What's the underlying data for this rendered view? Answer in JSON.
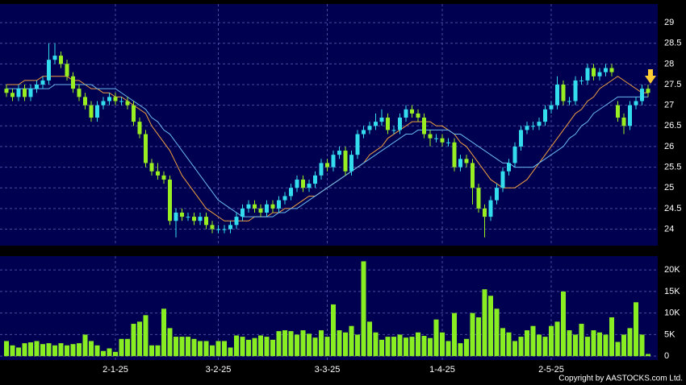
{
  "chart_data": {
    "type": "candlestick",
    "categories": [
      null,
      null,
      null,
      null,
      null,
      null,
      null,
      null,
      null,
      null,
      null,
      null,
      null,
      null,
      null,
      null,
      null,
      null,
      "2-1-25",
      null,
      null,
      null,
      null,
      null,
      null,
      null,
      null,
      null,
      null,
      null,
      null,
      null,
      null,
      null,
      null,
      "3-2-25",
      null,
      null,
      null,
      null,
      null,
      null,
      null,
      null,
      null,
      null,
      null,
      null,
      null,
      null,
      null,
      null,
      null,
      "3-3-25",
      null,
      null,
      null,
      null,
      null,
      null,
      null,
      null,
      null,
      null,
      null,
      null,
      null,
      null,
      null,
      null,
      null,
      null,
      "1-4-25",
      null,
      null,
      null,
      null,
      null,
      null,
      null,
      null,
      null,
      null,
      null,
      null,
      null,
      null,
      null,
      null,
      null,
      "2-5-25",
      null,
      null,
      null,
      null,
      null,
      null,
      null,
      null,
      null,
      null,
      null,
      null,
      null,
      null,
      null,
      null
    ],
    "ohlc": [
      [
        27.4,
        27.5,
        27.2,
        27.3
      ],
      [
        27.3,
        27.4,
        27.1,
        27.2
      ],
      [
        27.2,
        27.5,
        27.1,
        27.4
      ],
      [
        27.4,
        27.5,
        27.1,
        27.2
      ],
      [
        27.2,
        27.5,
        27.1,
        27.4
      ],
      [
        27.4,
        27.6,
        27.3,
        27.5
      ],
      [
        27.5,
        27.7,
        27.4,
        27.6
      ],
      [
        27.6,
        28.5,
        27.5,
        28.1
      ],
      [
        28.1,
        28.5,
        28.0,
        28.2
      ],
      [
        28.2,
        28.3,
        27.9,
        28.0
      ],
      [
        28.0,
        28.1,
        27.6,
        27.7
      ],
      [
        27.7,
        27.8,
        27.3,
        27.4
      ],
      [
        27.4,
        27.5,
        27.1,
        27.2
      ],
      [
        27.2,
        27.3,
        26.9,
        27.0
      ],
      [
        27.0,
        27.1,
        26.6,
        26.7
      ],
      [
        26.7,
        27.1,
        26.6,
        27.0
      ],
      [
        27.0,
        27.2,
        26.9,
        27.1
      ],
      [
        27.1,
        27.3,
        27.0,
        27.2
      ],
      [
        27.2,
        27.3,
        27.0,
        27.1
      ],
      [
        27.1,
        27.2,
        27.0,
        27.1
      ],
      [
        27.1,
        27.2,
        26.9,
        27.0
      ],
      [
        27.0,
        27.1,
        26.5,
        26.6
      ],
      [
        26.6,
        26.7,
        26.2,
        26.3
      ],
      [
        26.3,
        26.4,
        25.5,
        25.6
      ],
      [
        25.6,
        25.7,
        25.3,
        25.4
      ],
      [
        25.4,
        25.6,
        25.2,
        25.3
      ],
      [
        25.3,
        25.4,
        25.1,
        25.2
      ],
      [
        25.2,
        25.3,
        24.1,
        24.2
      ],
      [
        24.2,
        24.5,
        23.8,
        24.4
      ],
      [
        24.4,
        24.5,
        24.2,
        24.3
      ],
      [
        24.3,
        24.4,
        24.2,
        24.3
      ],
      [
        24.3,
        24.4,
        24.1,
        24.2
      ],
      [
        24.2,
        24.4,
        24.1,
        24.3
      ],
      [
        24.3,
        24.4,
        24.0,
        24.1
      ],
      [
        24.1,
        24.2,
        23.9,
        24.0
      ],
      [
        24.0,
        24.1,
        23.9,
        24.0
      ],
      [
        24.0,
        24.1,
        23.9,
        24.0
      ],
      [
        24.0,
        24.2,
        23.9,
        24.1
      ],
      [
        24.1,
        24.4,
        24.0,
        24.3
      ],
      [
        24.3,
        24.6,
        24.2,
        24.5
      ],
      [
        24.5,
        24.7,
        24.4,
        24.6
      ],
      [
        24.6,
        24.7,
        24.4,
        24.5
      ],
      [
        24.5,
        24.6,
        24.3,
        24.4
      ],
      [
        24.4,
        24.7,
        24.3,
        24.6
      ],
      [
        24.6,
        24.7,
        24.4,
        24.5
      ],
      [
        24.5,
        24.8,
        24.4,
        24.7
      ],
      [
        24.7,
        24.9,
        24.6,
        24.8
      ],
      [
        24.8,
        25.1,
        24.7,
        25.0
      ],
      [
        25.0,
        25.3,
        24.9,
        25.2
      ],
      [
        25.2,
        25.3,
        24.9,
        25.0
      ],
      [
        25.0,
        25.2,
        24.9,
        25.1
      ],
      [
        25.1,
        25.4,
        25.0,
        25.3
      ],
      [
        25.3,
        25.7,
        25.2,
        25.6
      ],
      [
        25.6,
        25.7,
        25.4,
        25.5
      ],
      [
        25.5,
        25.9,
        25.4,
        25.8
      ],
      [
        25.8,
        26.0,
        25.7,
        25.9
      ],
      [
        25.9,
        26.0,
        25.3,
        25.4
      ],
      [
        25.4,
        25.9,
        25.3,
        25.8
      ],
      [
        25.8,
        26.4,
        25.7,
        26.3
      ],
      [
        26.3,
        26.5,
        26.2,
        26.4
      ],
      [
        26.4,
        26.6,
        26.3,
        26.5
      ],
      [
        26.5,
        26.8,
        26.4,
        26.6
      ],
      [
        26.6,
        26.9,
        26.5,
        26.7
      ],
      [
        26.7,
        26.8,
        26.3,
        26.4
      ],
      [
        26.4,
        26.5,
        26.3,
        26.4
      ],
      [
        26.4,
        26.8,
        26.3,
        26.7
      ],
      [
        26.7,
        27.0,
        26.6,
        26.9
      ],
      [
        26.9,
        27.0,
        26.7,
        26.8
      ],
      [
        26.8,
        26.9,
        26.6,
        26.7
      ],
      [
        26.7,
        26.8,
        26.2,
        26.3
      ],
      [
        26.3,
        26.4,
        26.0,
        26.2
      ],
      [
        26.2,
        26.3,
        26.1,
        26.2
      ],
      [
        26.2,
        26.3,
        26.0,
        26.1
      ],
      [
        26.1,
        26.2,
        26.0,
        26.1
      ],
      [
        26.1,
        26.2,
        25.4,
        25.5
      ],
      [
        25.5,
        25.8,
        25.4,
        25.7
      ],
      [
        25.7,
        25.8,
        25.5,
        25.6
      ],
      [
        25.6,
        25.7,
        24.6,
        25.0
      ],
      [
        25.0,
        25.1,
        24.4,
        24.5
      ],
      [
        24.5,
        24.6,
        23.8,
        24.3
      ],
      [
        24.3,
        24.8,
        24.2,
        24.7
      ],
      [
        24.7,
        25.1,
        24.6,
        25.0
      ],
      [
        25.0,
        25.5,
        24.9,
        25.4
      ],
      [
        25.4,
        25.7,
        25.3,
        25.6
      ],
      [
        25.6,
        26.1,
        25.5,
        26.0
      ],
      [
        26.0,
        26.5,
        25.9,
        26.4
      ],
      [
        26.4,
        26.6,
        26.3,
        26.5
      ],
      [
        26.5,
        26.6,
        26.4,
        26.5
      ],
      [
        26.5,
        26.7,
        26.4,
        26.6
      ],
      [
        26.6,
        27.0,
        26.5,
        26.9
      ],
      [
        26.9,
        27.1,
        26.8,
        27.0
      ],
      [
        27.0,
        27.7,
        26.9,
        27.5
      ],
      [
        27.5,
        27.6,
        27.0,
        27.1
      ],
      [
        27.1,
        27.2,
        27.0,
        27.1
      ],
      [
        27.1,
        27.7,
        27.0,
        27.6
      ],
      [
        27.6,
        27.7,
        27.5,
        27.6
      ],
      [
        27.6,
        28.0,
        27.5,
        27.9
      ],
      [
        27.9,
        28.0,
        27.6,
        27.7
      ],
      [
        27.7,
        27.9,
        27.6,
        27.8
      ],
      [
        27.8,
        28.0,
        27.7,
        27.9
      ],
      [
        27.9,
        28.0,
        27.7,
        27.8
      ],
      [
        27.0,
        27.1,
        26.6,
        26.7
      ],
      [
        26.7,
        26.8,
        26.3,
        26.5
      ],
      [
        26.5,
        27.1,
        26.4,
        27.0
      ],
      [
        27.0,
        27.2,
        26.9,
        27.1
      ],
      [
        27.1,
        27.5,
        27.0,
        27.4
      ],
      [
        27.4,
        27.5,
        27.2,
        27.3
      ]
    ],
    "up_color": "#33ddee",
    "down_color": "#99ee22",
    "ma_lines": [
      {
        "color": "#f0a040",
        "values": [
          27.5,
          27.5,
          27.5,
          27.6,
          27.6,
          27.6,
          27.7,
          27.7,
          27.7,
          27.7,
          27.7,
          27.6,
          27.6,
          27.5,
          27.4,
          27.4,
          27.3,
          27.3,
          27.2,
          27.2,
          27.1,
          27.0,
          26.9,
          26.8,
          26.5,
          26.3,
          26.1,
          25.9,
          25.6,
          25.3,
          25.1,
          24.9,
          24.7,
          24.5,
          24.4,
          24.3,
          24.2,
          24.2,
          24.2,
          24.2,
          24.2,
          24.3,
          24.3,
          24.3,
          24.4,
          24.4,
          24.5,
          24.5,
          24.6,
          24.7,
          24.8,
          24.8,
          24.9,
          25.0,
          25.1,
          25.2,
          25.3,
          25.4,
          25.5,
          25.6,
          25.8,
          25.9,
          26.0,
          26.2,
          26.3,
          26.4,
          26.5,
          26.6,
          26.6,
          26.6,
          26.6,
          26.5,
          26.5,
          26.4,
          26.3,
          26.1,
          26.0,
          25.8,
          25.6,
          25.4,
          25.2,
          25.1,
          25.0,
          25.0,
          25.0,
          25.1,
          25.2,
          25.4,
          25.6,
          25.8,
          26.0,
          26.2,
          26.4,
          26.6,
          26.8,
          26.9,
          27.1,
          27.2,
          27.4,
          27.5,
          27.6,
          27.7,
          27.6,
          27.5,
          27.4,
          27.3,
          27.3
        ]
      },
      {
        "color": "#6ab8f0",
        "values": [
          27.4,
          27.4,
          27.4,
          27.4,
          27.4,
          27.4,
          27.4,
          27.4,
          27.5,
          27.5,
          27.5,
          27.5,
          27.5,
          27.5,
          27.5,
          27.4,
          27.4,
          27.4,
          27.4,
          27.3,
          27.2,
          27.1,
          27.0,
          26.9,
          26.7,
          26.6,
          26.4,
          26.3,
          26.1,
          25.9,
          25.7,
          25.5,
          25.3,
          25.1,
          24.9,
          24.7,
          24.6,
          24.5,
          24.4,
          24.3,
          24.3,
          24.3,
          24.3,
          24.3,
          24.3,
          24.4,
          24.4,
          24.5,
          24.5,
          24.6,
          24.7,
          24.8,
          24.9,
          25.0,
          25.1,
          25.2,
          25.3,
          25.4,
          25.5,
          25.6,
          25.7,
          25.8,
          25.9,
          26.0,
          26.1,
          26.2,
          26.3,
          26.3,
          26.4,
          26.4,
          26.4,
          26.4,
          26.4,
          26.4,
          26.3,
          26.3,
          26.2,
          26.1,
          26.0,
          25.9,
          25.8,
          25.7,
          25.6,
          25.6,
          25.5,
          25.5,
          25.5,
          25.5,
          25.6,
          25.7,
          25.8,
          25.9,
          26.0,
          26.2,
          26.3,
          26.5,
          26.6,
          26.8,
          26.9,
          27.0,
          27.1,
          27.2,
          27.2,
          27.2,
          27.2,
          27.2,
          27.2
        ]
      }
    ],
    "ylim": [
      23.6,
      29.45
    ],
    "yticks": [
      24,
      24.5,
      25,
      25.5,
      26,
      26.5,
      27,
      27.5,
      28,
      28.5,
      29
    ],
    "volume": [
      3500,
      2500,
      2000,
      3000,
      3200,
      3500,
      2800,
      3000,
      2500,
      3000,
      2500,
      2800,
      3000,
      5000,
      3500,
      2500,
      1200,
      1800,
      1000,
      4000,
      4000,
      7500,
      8000,
      9500,
      2500,
      2500,
      11000,
      6500,
      4500,
      4500,
      4500,
      4000,
      3500,
      3500,
      2500,
      3500,
      3500,
      2000,
      4800,
      4500,
      3800,
      4200,
      4800,
      4500,
      3800,
      5800,
      6000,
      5800,
      5000,
      6000,
      5200,
      4300,
      6000,
      4500,
      12000,
      6000,
      5500,
      7000,
      5000,
      22000,
      8000,
      5500,
      3800,
      4500,
      4500,
      5000,
      4300,
      4500,
      5500,
      4700,
      4200,
      8500,
      5500,
      3500,
      10000,
      3000,
      4000,
      10000,
      9000,
      15500,
      14000,
      11000,
      6500,
      5500,
      3500,
      4500,
      6000,
      7000,
      5000,
      4500,
      7000,
      8000,
      15000,
      6000,
      5000,
      7500,
      4500,
      6000,
      5500,
      5000,
      9000,
      3300,
      5000,
      6500,
      12500,
      5000,
      500
    ],
    "volume_color": "#88ee22",
    "volume_ylim": [
      -900,
      23200
    ],
    "volume_ticks": [
      0,
      {
        "value": 5000,
        "label": "5K"
      },
      {
        "value": 10000,
        "label": "10K"
      },
      {
        "value": 15000,
        "label": "15K"
      },
      {
        "value": 20000,
        "label": "20K"
      }
    ],
    "grid": true,
    "copyright": "Copyright by AASTOCKS.com Ltd."
  }
}
